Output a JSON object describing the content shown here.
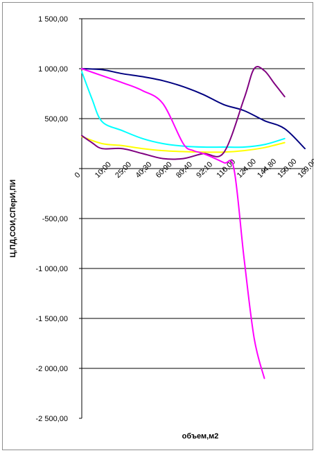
{
  "chart_data": {
    "type": "line",
    "title": "",
    "xlabel": "объем,м2",
    "ylabel": "Ц,ПД,СОИ,СПерИ,ПИ",
    "ylim": [
      -2500,
      1500
    ],
    "yticks": [
      -2500,
      -2000,
      -1500,
      -1000,
      -500,
      0,
      500,
      1000,
      1500
    ],
    "ytick_labels": [
      "-2 500,00",
      "-2 000,00",
      "-1 500,00",
      "-1 000,00",
      "-500,00",
      "",
      "500,00",
      "1 000,00",
      "1 500,00"
    ],
    "xticks": [
      "0",
      "10,00",
      "25,00",
      "40,30",
      "60,90",
      "80,40",
      "92,10",
      "110,00",
      "124,00",
      "144,80",
      "150,00",
      "169,00"
    ],
    "grid": true,
    "legend": "none",
    "series": [
      {
        "color": "#000080",
        "x": [
          0,
          1,
          2,
          3,
          4,
          5,
          6,
          7,
          8,
          9,
          10,
          11
        ],
        "y": [
          1000,
          990,
          950,
          920,
          880,
          820,
          740,
          640,
          580,
          480,
          400,
          200
        ]
      },
      {
        "color": "#00FFFF",
        "x": [
          0,
          0.5,
          1,
          2,
          3,
          4,
          5,
          6,
          7,
          8,
          9,
          10
        ],
        "y": [
          970,
          700,
          470,
          380,
          300,
          250,
          225,
          215,
          215,
          215,
          240,
          300
        ]
      },
      {
        "color": "#FFFF00",
        "x": [
          0,
          1,
          2,
          3,
          4,
          5,
          6,
          7,
          8,
          9,
          10
        ],
        "y": [
          320,
          250,
          230,
          200,
          180,
          170,
          165,
          165,
          180,
          210,
          260
        ]
      },
      {
        "color": "#800080",
        "x": [
          0,
          0.5,
          1,
          2,
          3,
          4,
          5,
          6,
          7,
          8,
          8.5,
          9,
          9.5,
          10
        ],
        "y": [
          330,
          260,
          200,
          200,
          150,
          100,
          100,
          150,
          160,
          700,
          1000,
          980,
          850,
          720
        ]
      },
      {
        "color": "#FF00FF",
        "x": [
          0,
          1,
          2,
          3,
          4,
          5,
          5.5,
          6,
          7,
          7.5,
          8,
          8.5,
          9
        ],
        "y": [
          1000,
          930,
          860,
          780,
          650,
          250,
          180,
          150,
          60,
          0,
          -900,
          -1700,
          -2100
        ]
      }
    ]
  }
}
